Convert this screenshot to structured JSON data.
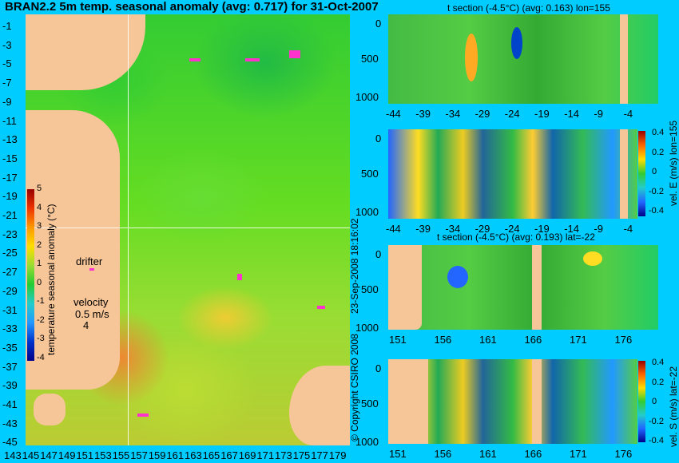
{
  "title": "BRAN2.2 5m temp. seasonal anomaly (avg: 0.717) for 31-Oct-2007",
  "map": {
    "y_ticks": [
      "-1",
      "-3",
      "-5",
      "-7",
      "-9",
      "-11",
      "-13",
      "-15",
      "-17",
      "-19",
      "-21",
      "-23",
      "-25",
      "-27",
      "-29",
      "-31",
      "-33",
      "-35",
      "-37",
      "-39",
      "-41",
      "-43",
      "-45"
    ],
    "x_ticks": [
      "143",
      "145",
      "147",
      "149",
      "151",
      "153",
      "155",
      "157",
      "159",
      "161",
      "163",
      "165",
      "167",
      "169",
      "171",
      "173",
      "175",
      "177",
      "179"
    ],
    "colorbar_label": "temperature seasonal anomaly (°C)",
    "colorbar_ticks": [
      "5",
      "4",
      "3",
      "2",
      "1",
      "0",
      "-1",
      "-2",
      "-3",
      "-4"
    ],
    "drifter_label": "drifter",
    "velocity_label": "velocity",
    "velocity_value": "0.5 m/s",
    "velocity_extra": "4"
  },
  "panels": {
    "p1_title": "t section (-4.5°C) (avg: 0.163) lon=155",
    "p3_title": "t section (-4.5°C) (avg: 0.193) lat=-22",
    "depth_ticks": [
      "0",
      "500",
      "1000"
    ],
    "lat_ticks": [
      "-44",
      "-39",
      "-34",
      "-29",
      "-24",
      "-19",
      "-14",
      "-9",
      "-4"
    ],
    "lon_ticks": [
      "151",
      "156",
      "161",
      "166",
      "171",
      "176"
    ],
    "cb_ticks": [
      "0.4",
      "0.2",
      "0",
      "-0.2",
      "-0.4"
    ],
    "p2_cb_label": "vel. E (m/s) lon=155",
    "p4_cb_label": "vel. S (m/s) lat=-22"
  },
  "credits": {
    "date": "23-Sep-2008 18:16:02",
    "copyright": "© Copyright CSIRO 2008"
  },
  "chart_data": [
    {
      "type": "heatmap",
      "title": "BRAN2.2 5m temp. seasonal anomaly (avg: 0.717) for 31-Oct-2007",
      "xlabel": "",
      "ylabel": "",
      "xlim": [
        143,
        180
      ],
      "ylim": [
        -45,
        0
      ],
      "colorbar": {
        "label": "temperature seasonal anomaly (°C)",
        "range": [
          -4,
          5
        ]
      }
    },
    {
      "type": "heatmap",
      "title": "t section (-4.5°C) (avg: 0.163) lon=155",
      "xlim": [
        -45,
        -1
      ],
      "ylim": [
        1050,
        0
      ]
    },
    {
      "type": "heatmap",
      "title": "",
      "xlim": [
        -45,
        -1
      ],
      "ylim": [
        1050,
        0
      ],
      "colorbar": {
        "label": "vel. E (m/s) lon=155",
        "range": [
          -0.4,
          0.4
        ]
      }
    },
    {
      "type": "heatmap",
      "title": "t section (-4.5°C) (avg: 0.193) lat=-22",
      "xlim": [
        150,
        180
      ],
      "ylim": [
        1050,
        0
      ]
    },
    {
      "type": "heatmap",
      "title": "",
      "xlim": [
        150,
        180
      ],
      "ylim": [
        1050,
        0
      ],
      "colorbar": {
        "label": "vel. S (m/s) lat=-22",
        "range": [
          -0.4,
          0.4
        ]
      }
    }
  ]
}
